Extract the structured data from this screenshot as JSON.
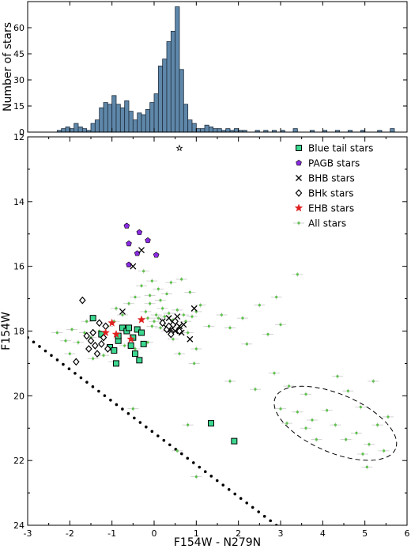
{
  "chart_data": [
    {
      "type": "histogram",
      "ylabel": "Number of stars",
      "xlim": [
        -3,
        6
      ],
      "ylim": [
        0,
        75
      ],
      "yticks": [
        0,
        15,
        30,
        45,
        60
      ],
      "bar_color": "#5f87a9",
      "bin_width": 0.1,
      "bins": [
        {
          "x": -2.3,
          "count": 1
        },
        {
          "x": -2.2,
          "count": 2
        },
        {
          "x": -2.1,
          "count": 3
        },
        {
          "x": -2.0,
          "count": 2
        },
        {
          "x": -1.9,
          "count": 5
        },
        {
          "x": -1.8,
          "count": 3
        },
        {
          "x": -1.7,
          "count": 2
        },
        {
          "x": -1.6,
          "count": 1
        },
        {
          "x": -1.5,
          "count": 5
        },
        {
          "x": -1.4,
          "count": 7
        },
        {
          "x": -1.3,
          "count": 14
        },
        {
          "x": -1.2,
          "count": 17
        },
        {
          "x": -1.1,
          "count": 16
        },
        {
          "x": -1.0,
          "count": 21
        },
        {
          "x": -0.9,
          "count": 16
        },
        {
          "x": -0.8,
          "count": 14
        },
        {
          "x": -0.7,
          "count": 18
        },
        {
          "x": -0.6,
          "count": 12
        },
        {
          "x": -0.5,
          "count": 7
        },
        {
          "x": -0.4,
          "count": 11
        },
        {
          "x": -0.3,
          "count": 10
        },
        {
          "x": -0.2,
          "count": 13
        },
        {
          "x": -0.1,
          "count": 17
        },
        {
          "x": 0.0,
          "count": 22
        },
        {
          "x": 0.1,
          "count": 38
        },
        {
          "x": 0.2,
          "count": 42
        },
        {
          "x": 0.3,
          "count": 52
        },
        {
          "x": 0.4,
          "count": 58
        },
        {
          "x": 0.5,
          "count": 72
        },
        {
          "x": 0.6,
          "count": 36
        },
        {
          "x": 0.7,
          "count": 16
        },
        {
          "x": 0.8,
          "count": 7
        },
        {
          "x": 0.9,
          "count": 5
        },
        {
          "x": 1.0,
          "count": 2
        },
        {
          "x": 1.1,
          "count": 2
        },
        {
          "x": 1.2,
          "count": 4
        },
        {
          "x": 1.3,
          "count": 3
        },
        {
          "x": 1.4,
          "count": 2
        },
        {
          "x": 1.5,
          "count": 2
        },
        {
          "x": 1.6,
          "count": 1
        },
        {
          "x": 1.7,
          "count": 2
        },
        {
          "x": 1.8,
          "count": 1
        },
        {
          "x": 1.9,
          "count": 2
        },
        {
          "x": 2.0,
          "count": 1
        },
        {
          "x": 2.1,
          "count": 1
        },
        {
          "x": 2.4,
          "count": 1
        },
        {
          "x": 2.6,
          "count": 1
        },
        {
          "x": 2.8,
          "count": 1
        },
        {
          "x": 3.0,
          "count": 1
        },
        {
          "x": 3.3,
          "count": 2
        },
        {
          "x": 3.7,
          "count": 1
        },
        {
          "x": 4.0,
          "count": 1
        },
        {
          "x": 4.3,
          "count": 1
        },
        {
          "x": 4.6,
          "count": 1
        },
        {
          "x": 4.9,
          "count": 1
        },
        {
          "x": 5.3,
          "count": 1
        },
        {
          "x": 5.6,
          "count": 2
        }
      ]
    },
    {
      "type": "scatter",
      "xlabel": "F154W - N279N",
      "ylabel": "F154W",
      "xlim": [
        -3,
        6
      ],
      "ylim": [
        24,
        12
      ],
      "xticks": [
        -3,
        -2,
        -1,
        0,
        1,
        2,
        3,
        4,
        5,
        6
      ],
      "yticks": [
        12,
        14,
        16,
        18,
        20,
        22,
        24
      ],
      "legend_position": "top-right",
      "series": [
        {
          "name": "Blue tail stars",
          "marker": "square",
          "color": "#3cd890",
          "points": [
            [
              -1.45,
              17.6
            ],
            [
              -1.25,
              18.1
            ],
            [
              -1.05,
              18.5
            ],
            [
              -0.95,
              18.6
            ],
            [
              -0.9,
              19.0
            ],
            [
              -0.85,
              18.3
            ],
            [
              -0.75,
              17.9
            ],
            [
              -0.65,
              18.0
            ],
            [
              -0.6,
              17.9
            ],
            [
              -0.5,
              18.2
            ],
            [
              -0.45,
              18.7
            ],
            [
              -0.4,
              17.95
            ],
            [
              -0.3,
              18.05
            ],
            [
              -0.25,
              18.4
            ],
            [
              -0.55,
              18.45
            ],
            [
              -0.35,
              18.9
            ],
            [
              -0.85,
              18.15
            ],
            [
              1.35,
              20.85
            ],
            [
              1.9,
              21.4
            ]
          ]
        },
        {
          "name": "PAGB stars",
          "marker": "pentagon",
          "color": "#8a2be2",
          "points": [
            [
              -0.65,
              14.75
            ],
            [
              -0.35,
              14.95
            ],
            [
              -0.15,
              15.2
            ],
            [
              0.05,
              15.65
            ],
            [
              -0.6,
              15.95
            ],
            [
              -0.4,
              15.6
            ],
            [
              -0.6,
              15.3
            ]
          ]
        },
        {
          "name": "BHB stars",
          "marker": "x",
          "color": "#000000",
          "points": [
            [
              0.2,
              17.7
            ],
            [
              0.3,
              17.9
            ],
            [
              0.45,
              17.75
            ],
            [
              0.5,
              18.0
            ],
            [
              0.55,
              17.55
            ],
            [
              0.6,
              17.85
            ],
            [
              0.65,
              18.05
            ],
            [
              0.35,
              17.6
            ],
            [
              0.4,
              17.95
            ],
            [
              0.7,
              17.8
            ],
            [
              0.85,
              18.25
            ],
            [
              0.95,
              17.3
            ],
            [
              -0.75,
              17.4
            ],
            [
              -0.3,
              15.5
            ],
            [
              -0.5,
              16.0
            ]
          ]
        },
        {
          "name": "BHk stars",
          "marker": "diamond",
          "color": "#000000",
          "points": [
            [
              -1.85,
              18.95
            ],
            [
              -1.6,
              18.15
            ],
            [
              -1.55,
              18.55
            ],
            [
              -1.5,
              18.3
            ],
            [
              -1.45,
              18.05
            ],
            [
              -1.4,
              18.45
            ],
            [
              -1.35,
              18.7
            ],
            [
              -1.3,
              17.75
            ],
            [
              -1.25,
              18.4
            ],
            [
              -1.2,
              18.2
            ],
            [
              -1.15,
              17.85
            ],
            [
              -1.1,
              18.55
            ],
            [
              0.2,
              17.75
            ],
            [
              0.3,
              17.95
            ],
            [
              0.35,
              17.85
            ],
            [
              0.45,
              17.8
            ],
            [
              0.5,
              17.7
            ],
            [
              0.6,
              18.0
            ],
            [
              0.4,
              18.1
            ],
            [
              -1.7,
              17.05
            ]
          ]
        },
        {
          "name": "EHB stars",
          "marker": "star",
          "color": "#e02020",
          "points": [
            [
              -1.15,
              18.05
            ],
            [
              -1.0,
              17.75
            ],
            [
              -0.9,
              18.1
            ],
            [
              -0.55,
              18.25
            ],
            [
              -0.3,
              17.65
            ]
          ]
        },
        {
          "name": "All stars",
          "marker": "dot-errorbar",
          "color": "#5cc24a",
          "points": [
            [
              0.05,
              17.5
            ],
            [
              0.1,
              17.6
            ],
            [
              0.15,
              17.9
            ],
            [
              0.2,
              17.3
            ],
            [
              0.25,
              17.55
            ],
            [
              0.3,
              18.0
            ],
            [
              0.35,
              17.45
            ],
            [
              0.45,
              17.65
            ],
            [
              0.55,
              17.35
            ],
            [
              0.6,
              17.9
            ],
            [
              0.7,
              17.5
            ],
            [
              0.75,
              17.7
            ],
            [
              0.8,
              18.05
            ],
            [
              0.9,
              17.55
            ],
            [
              1.0,
              17.4
            ],
            [
              1.1,
              17.2
            ],
            [
              0.0,
              17.7
            ],
            [
              -0.05,
              17.85
            ],
            [
              -0.15,
              17.6
            ],
            [
              -0.2,
              17.4
            ],
            [
              -0.1,
              17.15
            ],
            [
              0.15,
              17.05
            ],
            [
              0.3,
              16.85
            ],
            [
              0.1,
              16.7
            ],
            [
              0.4,
              16.5
            ],
            [
              -0.1,
              16.9
            ],
            [
              -0.05,
              16.45
            ],
            [
              -0.3,
              16.6
            ],
            [
              -0.45,
              16.95
            ],
            [
              -0.6,
              17.15
            ],
            [
              -0.75,
              17.5
            ],
            [
              -0.95,
              17.7
            ],
            [
              -1.1,
              17.85
            ],
            [
              -1.3,
              18.0
            ],
            [
              -1.5,
              18.2
            ],
            [
              -1.65,
              18.05
            ],
            [
              -1.8,
              18.35
            ],
            [
              -2.1,
              18.3
            ],
            [
              -2.3,
              18.05
            ],
            [
              -1.95,
              17.95
            ],
            [
              -1.2,
              18.75
            ],
            [
              -0.95,
              18.95
            ],
            [
              -0.7,
              18.45
            ],
            [
              -0.45,
              18.55
            ],
            [
              -0.15,
              18.35
            ],
            [
              1.3,
              17.85
            ],
            [
              1.6,
              17.5
            ],
            [
              1.8,
              17.9
            ],
            [
              2.1,
              17.6
            ],
            [
              2.5,
              17.2
            ],
            [
              2.9,
              16.95
            ],
            [
              3.0,
              17.8
            ],
            [
              3.4,
              16.25
            ],
            [
              2.7,
              18.1
            ],
            [
              2.2,
              18.4
            ],
            [
              1.8,
              19.55
            ],
            [
              2.4,
              19.8
            ],
            [
              2.85,
              19.3
            ],
            [
              3.2,
              19.7
            ],
            [
              3.6,
              19.95
            ],
            [
              3.0,
              20.4
            ],
            [
              3.4,
              20.5
            ],
            [
              3.75,
              20.75
            ],
            [
              4.1,
              20.45
            ],
            [
              3.6,
              21.0
            ],
            [
              4.3,
              20.9
            ],
            [
              4.55,
              21.35
            ],
            [
              4.8,
              21.15
            ],
            [
              5.1,
              21.5
            ],
            [
              5.3,
              20.9
            ],
            [
              5.55,
              20.65
            ],
            [
              4.95,
              21.8
            ],
            [
              5.45,
              21.7
            ],
            [
              4.35,
              19.4
            ],
            [
              4.6,
              19.85
            ],
            [
              5.2,
              19.55
            ],
            [
              3.85,
              21.35
            ],
            [
              3.15,
              20.85
            ],
            [
              4.9,
              20.35
            ],
            [
              5.05,
              22.2
            ],
            [
              0.55,
              21.7
            ],
            [
              -0.5,
              20.4
            ],
            [
              0.8,
              20.9
            ],
            [
              1.0,
              22.5
            ],
            [
              0.6,
              18.7
            ],
            [
              1.0,
              18.55
            ],
            [
              0.65,
              16.4
            ],
            [
              0.85,
              16.8
            ],
            [
              -0.25,
              16.15
            ],
            [
              -0.9,
              17.3
            ],
            [
              -1.6,
              17.7
            ],
            [
              -2.0,
              18.7
            ],
            [
              -1.45,
              18.85
            ],
            [
              0.45,
              18.25
            ],
            [
              0.95,
              19.0
            ]
          ]
        },
        {
          "name": "",
          "marker": "open-star",
          "color": "#000000",
          "points": [
            [
              0.6,
              12.35
            ]
          ]
        }
      ],
      "dotted_line": {
        "from": [
          -3.0,
          18.2
        ],
        "to": [
          2.9,
          24.0
        ]
      },
      "dashed_ellipse": {
        "center": [
          4.3,
          20.85
        ],
        "rx": 1.55,
        "ry": 0.9,
        "angle_deg": 23
      }
    }
  ]
}
